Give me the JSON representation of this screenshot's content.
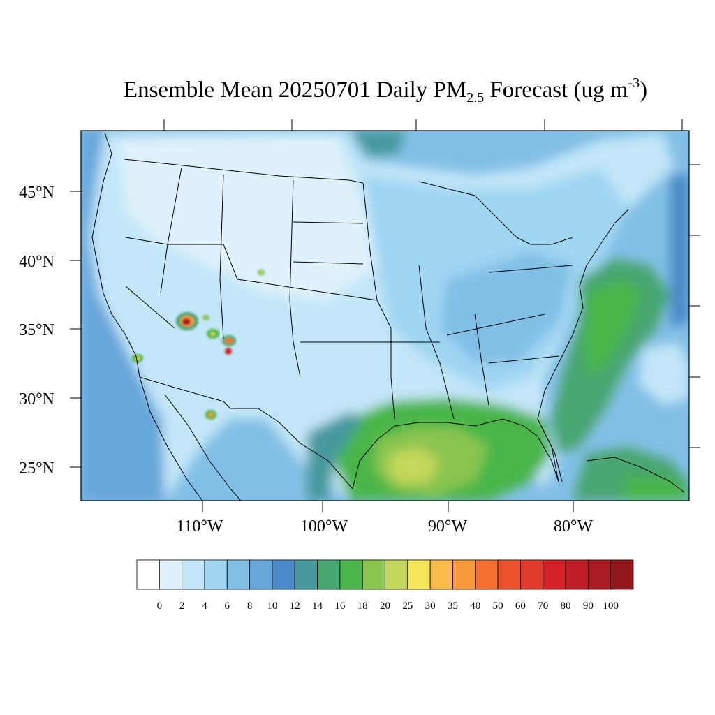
{
  "title": {
    "prefix": "Ensemble Mean 20250701 Daily PM",
    "subscript": "2.5",
    "middle": " Forecast (ug m",
    "superscript": "-3",
    "suffix": ")"
  },
  "latitude_labels": [
    "45°N",
    "40°N",
    "35°N",
    "30°N",
    "25°N"
  ],
  "longitude_labels": [
    "110°W",
    "100°W",
    "90°W",
    "80°W"
  ],
  "colorbar": {
    "colors": [
      "#ffffff",
      "#dff2fc",
      "#c3e6f8",
      "#9fd6f2",
      "#82bfe6",
      "#66a6da",
      "#4a8ac8",
      "#47999e",
      "#48a671",
      "#4ab54a",
      "#8ac550",
      "#c4d75a",
      "#f7e55b",
      "#f9bc4a",
      "#f79a3b",
      "#f47030",
      "#e9522c",
      "#df3a2a",
      "#d42229",
      "#c01e27",
      "#a81b22",
      "#90171b"
    ],
    "labels": [
      "0",
      "2",
      "4",
      "6",
      "8",
      "10",
      "12",
      "14",
      "16",
      "18",
      "20",
      "25",
      "30",
      "35",
      "40",
      "50",
      "60",
      "70",
      "80",
      "90",
      "100"
    ]
  },
  "map_colors": {
    "ocean_base": "#82bfe6",
    "land_base": "#c3e6f8",
    "border": "#000000"
  }
}
